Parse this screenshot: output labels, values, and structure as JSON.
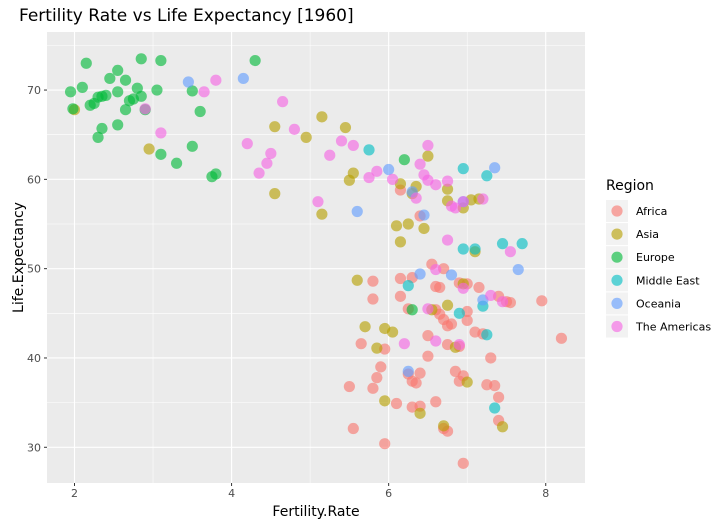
{
  "chart_data": {
    "type": "scatter",
    "title": "Fertility Rate vs Life Expectancy [1960]",
    "xlabel": "Fertility.Rate",
    "ylabel": "Life.Expectancy",
    "xlim": [
      1.65,
      8.5
    ],
    "ylim": [
      26,
      76.5
    ],
    "x_ticks": [
      2,
      4,
      6,
      8
    ],
    "y_ticks": [
      30,
      40,
      50,
      60,
      70
    ],
    "grid": true,
    "legend": {
      "title": "Region",
      "position": "right"
    },
    "series": [
      {
        "name": "Africa",
        "color": "#F8766D",
        "points": [
          [
            6.15,
            58.8
          ],
          [
            6.4,
            55.9
          ],
          [
            6.55,
            50.5
          ],
          [
            6.7,
            50.0
          ],
          [
            6.3,
            49.0
          ],
          [
            6.15,
            48.9
          ],
          [
            6.6,
            48.0
          ],
          [
            6.9,
            48.4
          ],
          [
            7.0,
            48.3
          ],
          [
            7.15,
            47.9
          ],
          [
            5.8,
            48.6
          ],
          [
            6.65,
            47.9
          ],
          [
            7.4,
            46.9
          ],
          [
            7.5,
            46.3
          ],
          [
            7.55,
            46.2
          ],
          [
            7.95,
            46.4
          ],
          [
            5.8,
            46.6
          ],
          [
            6.15,
            46.9
          ],
          [
            6.25,
            45.5
          ],
          [
            6.6,
            45.4
          ],
          [
            6.65,
            44.9
          ],
          [
            6.7,
            44.3
          ],
          [
            6.75,
            43.6
          ],
          [
            6.8,
            43.8
          ],
          [
            7.0,
            45.2
          ],
          [
            7.0,
            44.2
          ],
          [
            7.1,
            42.9
          ],
          [
            7.2,
            42.7
          ],
          [
            6.5,
            42.5
          ],
          [
            5.65,
            41.6
          ],
          [
            5.95,
            41.0
          ],
          [
            5.9,
            39.0
          ],
          [
            6.5,
            40.2
          ],
          [
            6.75,
            41.5
          ],
          [
            6.9,
            41.3
          ],
          [
            7.3,
            40.0
          ],
          [
            8.2,
            42.2
          ],
          [
            5.85,
            37.8
          ],
          [
            5.8,
            36.6
          ],
          [
            5.5,
            36.8
          ],
          [
            6.25,
            38.2
          ],
          [
            6.3,
            37.4
          ],
          [
            6.35,
            37.2
          ],
          [
            6.4,
            38.3
          ],
          [
            6.85,
            38.5
          ],
          [
            6.95,
            38.0
          ],
          [
            6.9,
            37.4
          ],
          [
            7.25,
            37.0
          ],
          [
            7.35,
            36.9
          ],
          [
            7.4,
            35.6
          ],
          [
            6.1,
            34.9
          ],
          [
            6.3,
            34.5
          ],
          [
            6.4,
            34.6
          ],
          [
            6.6,
            35.1
          ],
          [
            6.7,
            32.1
          ],
          [
            6.75,
            31.8
          ],
          [
            5.55,
            32.1
          ],
          [
            5.95,
            30.4
          ],
          [
            7.4,
            33.0
          ],
          [
            6.95,
            28.2
          ]
        ]
      },
      {
        "name": "Asia",
        "color": "#B79F00",
        "points": [
          [
            2.0,
            67.8
          ],
          [
            2.95,
            63.4
          ],
          [
            4.55,
            65.9
          ],
          [
            4.95,
            64.7
          ],
          [
            5.15,
            67.0
          ],
          [
            5.45,
            65.8
          ],
          [
            5.55,
            60.7
          ],
          [
            5.5,
            59.9
          ],
          [
            4.55,
            58.4
          ],
          [
            5.15,
            56.1
          ],
          [
            6.15,
            59.5
          ],
          [
            6.3,
            58.4
          ],
          [
            6.35,
            59.2
          ],
          [
            6.5,
            62.6
          ],
          [
            6.75,
            58.9
          ],
          [
            7.15,
            57.8
          ],
          [
            7.05,
            57.7
          ],
          [
            6.95,
            56.8
          ],
          [
            6.1,
            54.8
          ],
          [
            6.25,
            55.0
          ],
          [
            6.15,
            53.0
          ],
          [
            6.45,
            54.5
          ],
          [
            6.75,
            57.6
          ],
          [
            7.1,
            51.9
          ],
          [
            5.6,
            48.7
          ],
          [
            6.55,
            45.4
          ],
          [
            6.75,
            45.9
          ],
          [
            6.95,
            48.3
          ],
          [
            5.95,
            43.3
          ],
          [
            6.05,
            42.9
          ],
          [
            5.7,
            43.5
          ],
          [
            5.85,
            41.1
          ],
          [
            6.85,
            41.2
          ],
          [
            7.0,
            37.3
          ],
          [
            5.95,
            35.2
          ],
          [
            6.4,
            33.8
          ],
          [
            6.7,
            32.4
          ],
          [
            7.45,
            32.3
          ]
        ]
      },
      {
        "name": "Europe",
        "color": "#00BA38",
        "points": [
          [
            2.15,
            73.0
          ],
          [
            2.55,
            72.2
          ],
          [
            2.85,
            73.5
          ],
          [
            3.1,
            73.3
          ],
          [
            4.3,
            73.3
          ],
          [
            1.95,
            69.8
          ],
          [
            2.1,
            70.3
          ],
          [
            2.2,
            68.3
          ],
          [
            2.25,
            68.5
          ],
          [
            2.3,
            69.2
          ],
          [
            2.35,
            69.3
          ],
          [
            2.4,
            69.4
          ],
          [
            2.45,
            71.3
          ],
          [
            2.55,
            69.8
          ],
          [
            2.65,
            71.1
          ],
          [
            2.7,
            68.8
          ],
          [
            2.75,
            69.0
          ],
          [
            2.8,
            70.2
          ],
          [
            2.85,
            69.3
          ],
          [
            2.65,
            67.8
          ],
          [
            1.98,
            67.9
          ],
          [
            2.3,
            64.7
          ],
          [
            2.35,
            65.7
          ],
          [
            2.55,
            66.1
          ],
          [
            2.9,
            67.8
          ],
          [
            3.05,
            70.0
          ],
          [
            3.5,
            69.9
          ],
          [
            3.6,
            67.6
          ],
          [
            3.1,
            62.8
          ],
          [
            3.3,
            61.8
          ],
          [
            3.5,
            63.7
          ],
          [
            3.8,
            60.6
          ],
          [
            3.75,
            60.3
          ],
          [
            6.2,
            62.2
          ],
          [
            6.3,
            45.4
          ]
        ]
      },
      {
        "name": "Middle East",
        "color": "#00BFC4",
        "points": [
          [
            5.75,
            63.3
          ],
          [
            6.95,
            61.2
          ],
          [
            7.25,
            60.4
          ],
          [
            6.95,
            52.2
          ],
          [
            7.1,
            52.2
          ],
          [
            7.45,
            52.8
          ],
          [
            7.7,
            52.8
          ],
          [
            6.25,
            48.1
          ],
          [
            7.2,
            45.8
          ],
          [
            6.9,
            45.0
          ],
          [
            7.25,
            42.6
          ],
          [
            7.35,
            34.4
          ]
        ]
      },
      {
        "name": "Oceania",
        "color": "#619CFF",
        "points": [
          [
            3.45,
            70.9
          ],
          [
            4.15,
            71.3
          ],
          [
            7.35,
            61.3
          ],
          [
            6.0,
            61.1
          ],
          [
            6.95,
            57.5
          ],
          [
            5.6,
            56.4
          ],
          [
            6.45,
            56.0
          ],
          [
            6.3,
            58.6
          ],
          [
            6.4,
            49.4
          ],
          [
            6.8,
            49.3
          ],
          [
            7.2,
            46.5
          ],
          [
            7.65,
            49.9
          ],
          [
            6.25,
            38.5
          ]
        ]
      },
      {
        "name": "The Americas",
        "color": "#F564E3",
        "points": [
          [
            2.9,
            67.9
          ],
          [
            3.1,
            65.2
          ],
          [
            3.65,
            69.8
          ],
          [
            3.8,
            71.1
          ],
          [
            4.2,
            64.0
          ],
          [
            4.35,
            60.7
          ],
          [
            4.45,
            61.8
          ],
          [
            4.5,
            62.9
          ],
          [
            4.65,
            68.7
          ],
          [
            4.8,
            65.6
          ],
          [
            5.1,
            57.5
          ],
          [
            5.25,
            62.7
          ],
          [
            5.4,
            64.3
          ],
          [
            5.55,
            63.8
          ],
          [
            5.75,
            60.2
          ],
          [
            5.85,
            60.9
          ],
          [
            6.05,
            60.0
          ],
          [
            6.35,
            57.9
          ],
          [
            6.4,
            61.7
          ],
          [
            6.45,
            60.5
          ],
          [
            6.5,
            63.8
          ],
          [
            6.5,
            59.9
          ],
          [
            6.6,
            59.4
          ],
          [
            6.75,
            59.8
          ],
          [
            6.8,
            57.0
          ],
          [
            6.85,
            56.8
          ],
          [
            6.95,
            57.5
          ],
          [
            7.2,
            57.8
          ],
          [
            6.75,
            53.2
          ],
          [
            6.6,
            49.9
          ],
          [
            6.5,
            45.5
          ],
          [
            6.95,
            47.8
          ],
          [
            7.3,
            47.0
          ],
          [
            7.45,
            46.3
          ],
          [
            7.55,
            51.9
          ],
          [
            6.6,
            41.9
          ],
          [
            6.2,
            41.6
          ],
          [
            6.9,
            41.5
          ]
        ]
      }
    ]
  }
}
